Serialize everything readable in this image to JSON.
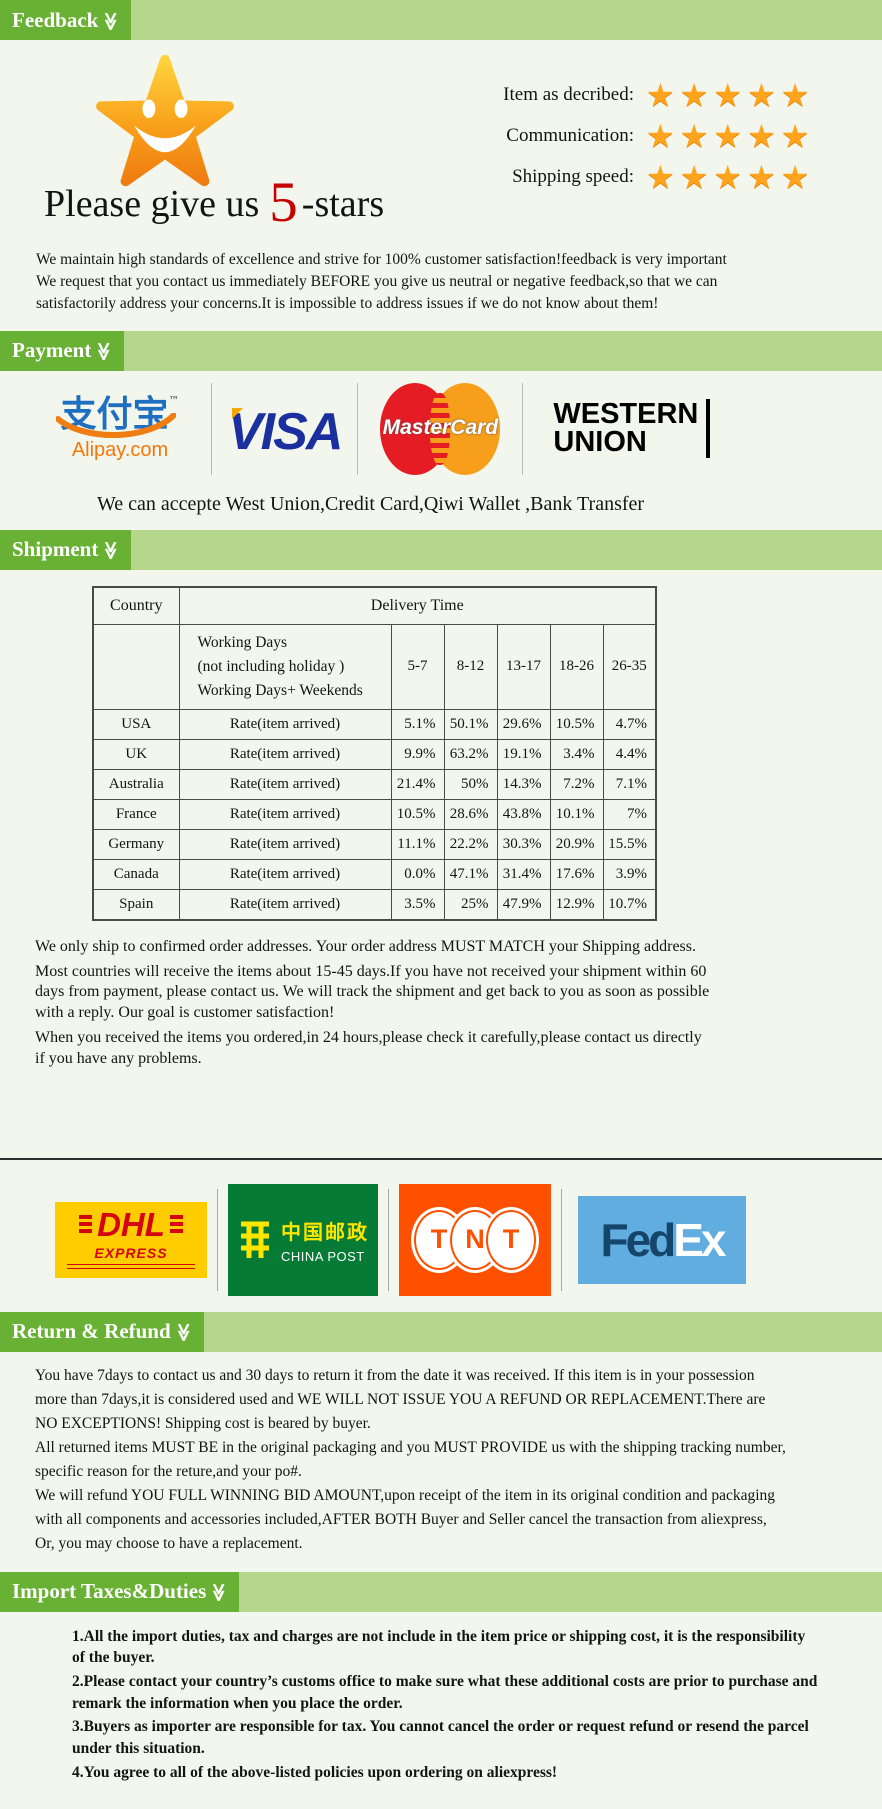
{
  "colors": {
    "page_bg": "#f3f6ec",
    "header_bar": "#b5d78c",
    "header_label_bg": "#69b134",
    "star_orange": "#ffa41c",
    "five_red": "#c70000",
    "alipay_blue": "#1e6fc0",
    "alipay_orange": "#f5770a",
    "visa_blue": "#1b2f9e",
    "mastercard_red": "#e61c24",
    "mastercard_orange": "#f79e1b",
    "dhl_yellow": "#ffcc00",
    "dhl_red": "#d40511",
    "chinapost_green": "#067b35",
    "tnt_orange": "#ff5000",
    "fedex_lightblue": "#62ade0",
    "fedex_navy": "#16456b"
  },
  "feedback": {
    "header": "Feedback",
    "caption": {
      "prefix": "Please give us",
      "number": "5",
      "suffix": "-stars"
    },
    "ratings": [
      {
        "label": "Item as decribed:",
        "stars": "★★★★★"
      },
      {
        "label": "Communication:",
        "stars": "★★★★★"
      },
      {
        "label": "Shipping speed:",
        "stars": "★★★★★"
      }
    ],
    "note": "We maintain high standards of excellence and strive for 100% customer satisfaction!feedback is very important\nWe request that you contact us immediately BEFORE you give us neutral or negative feedback,so that we can\nsatisfactorily address your concerns.It is impossible to address issues if we do not know about them!"
  },
  "payment": {
    "header": "Payment",
    "alipay_cn": "支付宝",
    "alipay_tm": "™",
    "alipay_url": "Alipay.com",
    "visa": "VISA",
    "mastercard": "MasterCard",
    "western_union_line1": "WESTERN",
    "western_union_line2": "UNION",
    "accept_note": "We can accepte West Union,Credit Card,Qiwi Wallet ,Bank Transfer"
  },
  "shipment": {
    "header": "Shipment",
    "table": {
      "country_header": "Country",
      "delivery_header": "Delivery Time",
      "working_days": "Working Days\n(not including holiday )\nWorking Days+ Weekends",
      "day_ranges": [
        "5-7",
        "8-12",
        "13-17",
        "18-26",
        "26-35"
      ],
      "rate_label": "Rate(item arrived)",
      "rows": [
        {
          "country": "USA",
          "rates": [
            "5.1%",
            "50.1%",
            "29.6%",
            "10.5%",
            "4.7%"
          ]
        },
        {
          "country": "UK",
          "rates": [
            "9.9%",
            "63.2%",
            "19.1%",
            "3.4%",
            "4.4%"
          ]
        },
        {
          "country": "Australia",
          "rates": [
            "21.4%",
            "50%",
            "14.3%",
            "7.2%",
            "7.1%"
          ]
        },
        {
          "country": "France",
          "rates": [
            "10.5%",
            "28.6%",
            "43.8%",
            "10.1%",
            "7%"
          ]
        },
        {
          "country": "Germany",
          "rates": [
            "11.1%",
            "22.2%",
            "30.3%",
            "20.9%",
            "15.5%"
          ]
        },
        {
          "country": "Canada",
          "rates": [
            "0.0%",
            "47.1%",
            "31.4%",
            "17.6%",
            "3.9%"
          ]
        },
        {
          "country": "Spain",
          "rates": [
            "3.5%",
            "25%",
            "47.9%",
            "12.9%",
            "10.7%"
          ]
        }
      ]
    },
    "notes": [
      "We only ship to confirmed order addresses. Your order address MUST MATCH your Shipping address.",
      "Most countries will receive the items about 15-45 days.If you have not received your shipment within 60\ndays from payment, please contact us. We will track the shipment and get back to you as soon as possible\nwith a reply. Our goal is customer satisfaction!",
      "When you received the items you ordered,in 24 hours,please check it carefully,please contact us directly\nif you have any problems."
    ]
  },
  "couriers": {
    "dhl_text": "DHL",
    "dhl_sub": "EXPRESS",
    "chinapost_cn": "中国邮政",
    "chinapost_en": "CHINA POST",
    "tnt_letters": [
      "T",
      "N",
      "T"
    ],
    "fedex_part1": "Fed",
    "fedex_part2": "Ex"
  },
  "return_refund": {
    "header": "Return & Refund",
    "paragraphs": [
      "You have 7days to contact us and 30 days to return it from the date it was received. If this item is in your possession\nmore than 7days,it is considered used and WE WILL NOT ISSUE YOU A REFUND OR REPLACEMENT.There are\nNO EXCEPTIONS! Shipping cost is beared by buyer.",
      "All returned items MUST BE in the original packaging and you MUST PROVIDE us with the shipping tracking number,\nspecific reason for the reture,and your po#.",
      "We will refund YOU FULL WINNING BID AMOUNT,upon receipt of the item in its original condition and packaging\nwith all components and accessories included,AFTER BOTH Buyer and Seller cancel the transaction from aliexpress,\nOr, you may choose to have a replacement."
    ]
  },
  "import_taxes": {
    "header": "Import Taxes&Duties",
    "items": [
      "1.All the import duties, tax and charges are not include in the item price or shipping cost, it is the responsibility\nof the buyer.",
      "2.Please contact your country’s customs office to make sure what these additional costs are prior to purchase and\nremark the information when you place the order.",
      "3.Buyers as importer are responsible for tax. You cannot cancel the order or request refund or resend the parcel\nunder this situation.",
      "4.You agree to all of the above-listed policies upon ordering on aliexpress!"
    ]
  }
}
